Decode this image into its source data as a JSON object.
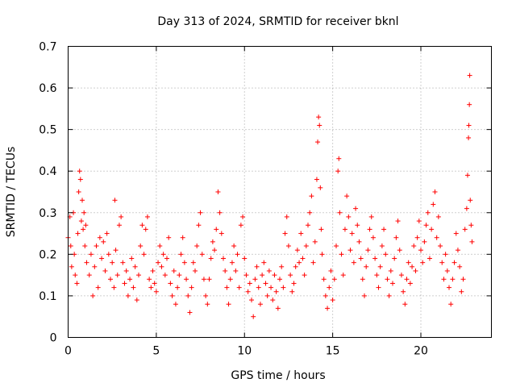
{
  "chart_data": {
    "type": "scatter",
    "title": "Day 313 of 2024, SRMTID for receiver bknl",
    "xlabel": "GPS time / hours",
    "ylabel": "SRMTID / TECUs",
    "xlim": [
      0,
      24
    ],
    "ylim": [
      0,
      0.7
    ],
    "xticks": [
      0,
      5,
      10,
      15,
      20
    ],
    "yticks": [
      0,
      0.1,
      0.2,
      0.3,
      0.4,
      0.5,
      0.6,
      0.7
    ],
    "xtick_labels": [
      "0",
      "5",
      "10",
      "15",
      "20"
    ],
    "ytick_labels": [
      "0",
      "0.1",
      "0.2",
      "0.3",
      "0.4",
      "0.5",
      "0.6",
      "0.7"
    ],
    "grid": true,
    "marker": "+",
    "marker_color": "#ff0000",
    "series": [
      {
        "name": "SRMTID",
        "points": [
          [
            0.0,
            0.24
          ],
          [
            0.1,
            0.29
          ],
          [
            0.15,
            0.22
          ],
          [
            0.2,
            0.17
          ],
          [
            0.3,
            0.3
          ],
          [
            0.35,
            0.2
          ],
          [
            0.4,
            0.15
          ],
          [
            0.5,
            0.13
          ],
          [
            0.55,
            0.25
          ],
          [
            0.6,
            0.35
          ],
          [
            0.65,
            0.4
          ],
          [
            0.7,
            0.38
          ],
          [
            0.75,
            0.28
          ],
          [
            0.8,
            0.33
          ],
          [
            0.85,
            0.26
          ],
          [
            0.9,
            0.3
          ],
          [
            0.95,
            0.22
          ],
          [
            1.0,
            0.27
          ],
          [
            1.05,
            0.18
          ],
          [
            1.2,
            0.15
          ],
          [
            1.3,
            0.2
          ],
          [
            1.4,
            0.1
          ],
          [
            1.5,
            0.17
          ],
          [
            1.6,
            0.22
          ],
          [
            1.7,
            0.12
          ],
          [
            1.8,
            0.24
          ],
          [
            1.9,
            0.19
          ],
          [
            2.0,
            0.23
          ],
          [
            2.1,
            0.16
          ],
          [
            2.2,
            0.25
          ],
          [
            2.3,
            0.2
          ],
          [
            2.4,
            0.14
          ],
          [
            2.5,
            0.18
          ],
          [
            2.6,
            0.12
          ],
          [
            2.65,
            0.33
          ],
          [
            2.7,
            0.21
          ],
          [
            2.8,
            0.15
          ],
          [
            2.9,
            0.27
          ],
          [
            3.0,
            0.29
          ],
          [
            3.1,
            0.18
          ],
          [
            3.2,
            0.13
          ],
          [
            3.3,
            0.16
          ],
          [
            3.4,
            0.1
          ],
          [
            3.5,
            0.14
          ],
          [
            3.6,
            0.19
          ],
          [
            3.7,
            0.12
          ],
          [
            3.8,
            0.17
          ],
          [
            3.9,
            0.09
          ],
          [
            4.0,
            0.15
          ],
          [
            4.1,
            0.22
          ],
          [
            4.2,
            0.27
          ],
          [
            4.3,
            0.2
          ],
          [
            4.4,
            0.26
          ],
          [
            4.5,
            0.29
          ],
          [
            4.6,
            0.14
          ],
          [
            4.7,
            0.12
          ],
          [
            4.8,
            0.16
          ],
          [
            4.9,
            0.13
          ],
          [
            5.0,
            0.11
          ],
          [
            5.1,
            0.18
          ],
          [
            5.2,
            0.22
          ],
          [
            5.3,
            0.17
          ],
          [
            5.4,
            0.2
          ],
          [
            5.5,
            0.15
          ],
          [
            5.6,
            0.19
          ],
          [
            5.7,
            0.24
          ],
          [
            5.8,
            0.13
          ],
          [
            5.9,
            0.1
          ],
          [
            6.0,
            0.16
          ],
          [
            6.1,
            0.08
          ],
          [
            6.2,
            0.12
          ],
          [
            6.3,
            0.15
          ],
          [
            6.4,
            0.2
          ],
          [
            6.5,
            0.24
          ],
          [
            6.6,
            0.18
          ],
          [
            6.7,
            0.14
          ],
          [
            6.8,
            0.1
          ],
          [
            6.9,
            0.06
          ],
          [
            7.0,
            0.12
          ],
          [
            7.1,
            0.18
          ],
          [
            7.2,
            0.16
          ],
          [
            7.3,
            0.22
          ],
          [
            7.4,
            0.27
          ],
          [
            7.5,
            0.3
          ],
          [
            7.6,
            0.2
          ],
          [
            7.7,
            0.14
          ],
          [
            7.8,
            0.1
          ],
          [
            7.9,
            0.08
          ],
          [
            8.0,
            0.14
          ],
          [
            8.1,
            0.19
          ],
          [
            8.2,
            0.23
          ],
          [
            8.3,
            0.21
          ],
          [
            8.4,
            0.26
          ],
          [
            8.5,
            0.35
          ],
          [
            8.6,
            0.3
          ],
          [
            8.7,
            0.25
          ],
          [
            8.8,
            0.19
          ],
          [
            8.9,
            0.16
          ],
          [
            9.0,
            0.12
          ],
          [
            9.1,
            0.08
          ],
          [
            9.2,
            0.14
          ],
          [
            9.3,
            0.18
          ],
          [
            9.4,
            0.22
          ],
          [
            9.5,
            0.16
          ],
          [
            9.6,
            0.2
          ],
          [
            9.7,
            0.12
          ],
          [
            9.8,
            0.27
          ],
          [
            9.9,
            0.29
          ],
          [
            10.0,
            0.19
          ],
          [
            10.1,
            0.15
          ],
          [
            10.2,
            0.11
          ],
          [
            10.3,
            0.13
          ],
          [
            10.4,
            0.09
          ],
          [
            10.5,
            0.05
          ],
          [
            10.6,
            0.14
          ],
          [
            10.7,
            0.17
          ],
          [
            10.8,
            0.12
          ],
          [
            10.9,
            0.08
          ],
          [
            11.0,
            0.15
          ],
          [
            11.1,
            0.18
          ],
          [
            11.2,
            0.13
          ],
          [
            11.3,
            0.1
          ],
          [
            11.4,
            0.16
          ],
          [
            11.5,
            0.12
          ],
          [
            11.6,
            0.09
          ],
          [
            11.7,
            0.15
          ],
          [
            11.8,
            0.11
          ],
          [
            11.9,
            0.07
          ],
          [
            12.0,
            0.14
          ],
          [
            12.1,
            0.17
          ],
          [
            12.2,
            0.12
          ],
          [
            12.3,
            0.25
          ],
          [
            12.4,
            0.29
          ],
          [
            12.5,
            0.22
          ],
          [
            12.6,
            0.15
          ],
          [
            12.7,
            0.11
          ],
          [
            12.8,
            0.13
          ],
          [
            12.9,
            0.17
          ],
          [
            13.0,
            0.21
          ],
          [
            13.1,
            0.18
          ],
          [
            13.2,
            0.25
          ],
          [
            13.3,
            0.19
          ],
          [
            13.4,
            0.15
          ],
          [
            13.5,
            0.22
          ],
          [
            13.6,
            0.27
          ],
          [
            13.7,
            0.3
          ],
          [
            13.8,
            0.34
          ],
          [
            13.9,
            0.18
          ],
          [
            14.0,
            0.23
          ],
          [
            14.1,
            0.38
          ],
          [
            14.15,
            0.47
          ],
          [
            14.2,
            0.53
          ],
          [
            14.25,
            0.51
          ],
          [
            14.3,
            0.36
          ],
          [
            14.35,
            0.26
          ],
          [
            14.4,
            0.2
          ],
          [
            14.5,
            0.14
          ],
          [
            14.6,
            0.1
          ],
          [
            14.7,
            0.07
          ],
          [
            14.8,
            0.12
          ],
          [
            14.9,
            0.16
          ],
          [
            15.0,
            0.09
          ],
          [
            15.1,
            0.14
          ],
          [
            15.2,
            0.22
          ],
          [
            15.3,
            0.4
          ],
          [
            15.35,
            0.43
          ],
          [
            15.4,
            0.3
          ],
          [
            15.5,
            0.2
          ],
          [
            15.6,
            0.15
          ],
          [
            15.7,
            0.26
          ],
          [
            15.8,
            0.34
          ],
          [
            15.9,
            0.29
          ],
          [
            16.0,
            0.21
          ],
          [
            16.1,
            0.25
          ],
          [
            16.2,
            0.18
          ],
          [
            16.3,
            0.31
          ],
          [
            16.4,
            0.27
          ],
          [
            16.5,
            0.23
          ],
          [
            16.6,
            0.19
          ],
          [
            16.7,
            0.14
          ],
          [
            16.8,
            0.1
          ],
          [
            16.9,
            0.17
          ],
          [
            17.0,
            0.21
          ],
          [
            17.1,
            0.26
          ],
          [
            17.2,
            0.29
          ],
          [
            17.3,
            0.24
          ],
          [
            17.4,
            0.19
          ],
          [
            17.5,
            0.15
          ],
          [
            17.6,
            0.12
          ],
          [
            17.7,
            0.17
          ],
          [
            17.8,
            0.22
          ],
          [
            17.9,
            0.26
          ],
          [
            18.0,
            0.2
          ],
          [
            18.1,
            0.14
          ],
          [
            18.2,
            0.1
          ],
          [
            18.3,
            0.16
          ],
          [
            18.4,
            0.13
          ],
          [
            18.5,
            0.19
          ],
          [
            18.6,
            0.24
          ],
          [
            18.7,
            0.28
          ],
          [
            18.8,
            0.21
          ],
          [
            18.9,
            0.15
          ],
          [
            19.0,
            0.11
          ],
          [
            19.1,
            0.08
          ],
          [
            19.2,
            0.14
          ],
          [
            19.3,
            0.18
          ],
          [
            19.4,
            0.13
          ],
          [
            19.5,
            0.17
          ],
          [
            19.6,
            0.22
          ],
          [
            19.7,
            0.16
          ],
          [
            19.8,
            0.24
          ],
          [
            19.9,
            0.28
          ],
          [
            20.0,
            0.21
          ],
          [
            20.1,
            0.18
          ],
          [
            20.2,
            0.23
          ],
          [
            20.3,
            0.27
          ],
          [
            20.4,
            0.3
          ],
          [
            20.5,
            0.19
          ],
          [
            20.6,
            0.26
          ],
          [
            20.7,
            0.32
          ],
          [
            20.8,
            0.35
          ],
          [
            20.9,
            0.24
          ],
          [
            21.0,
            0.29
          ],
          [
            21.1,
            0.22
          ],
          [
            21.2,
            0.18
          ],
          [
            21.3,
            0.14
          ],
          [
            21.4,
            0.2
          ],
          [
            21.5,
            0.16
          ],
          [
            21.6,
            0.12
          ],
          [
            21.7,
            0.08
          ],
          [
            21.8,
            0.14
          ],
          [
            21.9,
            0.18
          ],
          [
            22.0,
            0.25
          ],
          [
            22.1,
            0.21
          ],
          [
            22.2,
            0.17
          ],
          [
            22.3,
            0.11
          ],
          [
            22.4,
            0.14
          ],
          [
            22.5,
            0.26
          ],
          [
            22.6,
            0.31
          ],
          [
            22.65,
            0.39
          ],
          [
            22.7,
            0.48
          ],
          [
            22.72,
            0.51
          ],
          [
            22.75,
            0.56
          ],
          [
            22.77,
            0.63
          ],
          [
            22.8,
            0.33
          ],
          [
            22.85,
            0.27
          ],
          [
            22.9,
            0.23
          ]
        ]
      }
    ]
  }
}
